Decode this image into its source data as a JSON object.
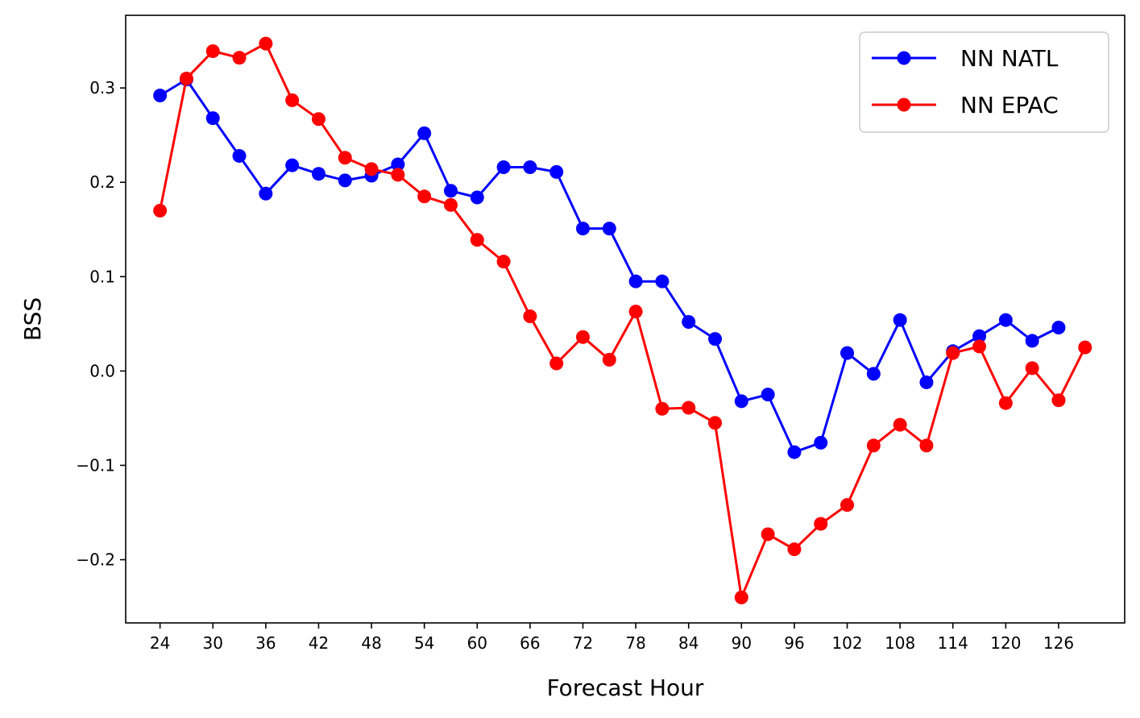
{
  "chart_data": {
    "type": "line",
    "title": "",
    "xlabel": "Forecast Hour",
    "ylabel": "BSS",
    "xlim": [
      20.1,
      133.5
    ],
    "ylim": [
      -0.267,
      0.377
    ],
    "xticks": [
      24,
      30,
      36,
      42,
      48,
      54,
      60,
      66,
      72,
      78,
      84,
      90,
      96,
      102,
      108,
      114,
      120,
      126
    ],
    "yticks": [
      -0.2,
      -0.1,
      0.0,
      0.1,
      0.2,
      0.3
    ],
    "ytick_labels": [
      "−0.2",
      "−0.1",
      "0.0",
      "0.1",
      "0.2",
      "0.3"
    ],
    "grid": false,
    "legend_position": "top-right",
    "series": [
      {
        "name": "NN NATL",
        "color": "#0000ff",
        "marker": "circle",
        "x": [
          24,
          27,
          30,
          33,
          36,
          39,
          42,
          45,
          48,
          51,
          54,
          57,
          60,
          63,
          66,
          69,
          72,
          75,
          78,
          81,
          84,
          87,
          90,
          93,
          96,
          99,
          102,
          105,
          108,
          111,
          114,
          117,
          120,
          123,
          126
        ],
        "y": [
          0.292,
          0.309,
          0.268,
          0.228,
          0.188,
          0.218,
          0.209,
          0.202,
          0.207,
          0.219,
          0.252,
          0.191,
          0.184,
          0.216,
          0.216,
          0.211,
          0.151,
          0.151,
          0.095,
          0.095,
          0.052,
          0.034,
          -0.032,
          -0.025,
          -0.086,
          -0.076,
          0.019,
          -0.003,
          0.054,
          -0.012,
          0.021,
          0.037,
          0.054,
          0.032,
          0.046
        ]
      },
      {
        "name": "NN EPAC",
        "color": "#ff0000",
        "marker": "circle",
        "x": [
          24,
          27,
          30,
          33,
          36,
          39,
          42,
          45,
          48,
          51,
          54,
          57,
          60,
          63,
          66,
          69,
          72,
          75,
          78,
          81,
          84,
          87,
          90,
          93,
          96,
          99,
          102,
          105,
          108,
          111,
          114,
          117,
          120,
          123,
          126,
          129
        ],
        "y": [
          0.17,
          0.31,
          0.339,
          0.332,
          0.347,
          0.287,
          0.267,
          0.226,
          0.214,
          0.208,
          0.185,
          0.176,
          0.139,
          0.116,
          0.058,
          0.008,
          0.036,
          0.012,
          0.063,
          -0.04,
          -0.039,
          -0.055,
          -0.24,
          -0.173,
          -0.189,
          -0.162,
          -0.142,
          -0.079,
          -0.057,
          -0.079,
          0.019,
          0.026,
          -0.034,
          0.003,
          -0.031,
          0.025
        ]
      }
    ]
  }
}
